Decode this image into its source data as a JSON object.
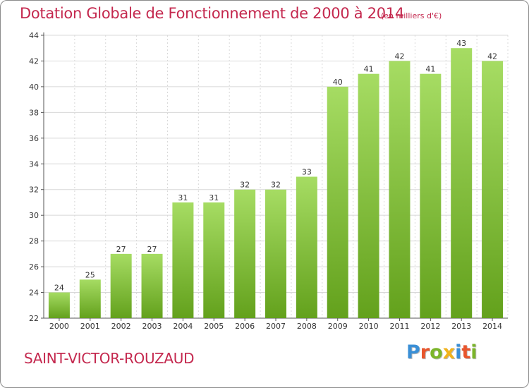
{
  "title": "Dotation Globale de Fonctionnement de 2000 à 2014",
  "unit_note": "(en milliers d'€)",
  "commune": "SAINT-VICTOR-ROUZAUD",
  "logo": {
    "text": "Proxiti",
    "letter_colors": [
      "#3a8fd6",
      "#e8552c",
      "#7bb52a",
      "#f2b21b",
      "#3a8fd6",
      "#e8552c",
      "#7bb52a"
    ]
  },
  "colors": {
    "title": "#c4284e",
    "bar_top": "#a6dc63",
    "bar_bottom": "#63a11c",
    "grid": "#d8d8d8"
  },
  "chart_data": {
    "type": "bar",
    "title": "Dotation Globale de Fonctionnement de 2000 à 2014",
    "xlabel": "",
    "ylabel": "",
    "categories": [
      "2000",
      "2001",
      "2002",
      "2003",
      "2004",
      "2005",
      "2006",
      "2007",
      "2008",
      "2009",
      "2010",
      "2011",
      "2012",
      "2013",
      "2014"
    ],
    "values": [
      24,
      25,
      27,
      27,
      31,
      31,
      32,
      32,
      33,
      40,
      41,
      42,
      41,
      43,
      42
    ],
    "ylim": [
      22,
      44
    ],
    "yticks": [
      22,
      24,
      26,
      28,
      30,
      32,
      34,
      36,
      38,
      40,
      42,
      44
    ],
    "grid": true,
    "data_labels": true
  }
}
